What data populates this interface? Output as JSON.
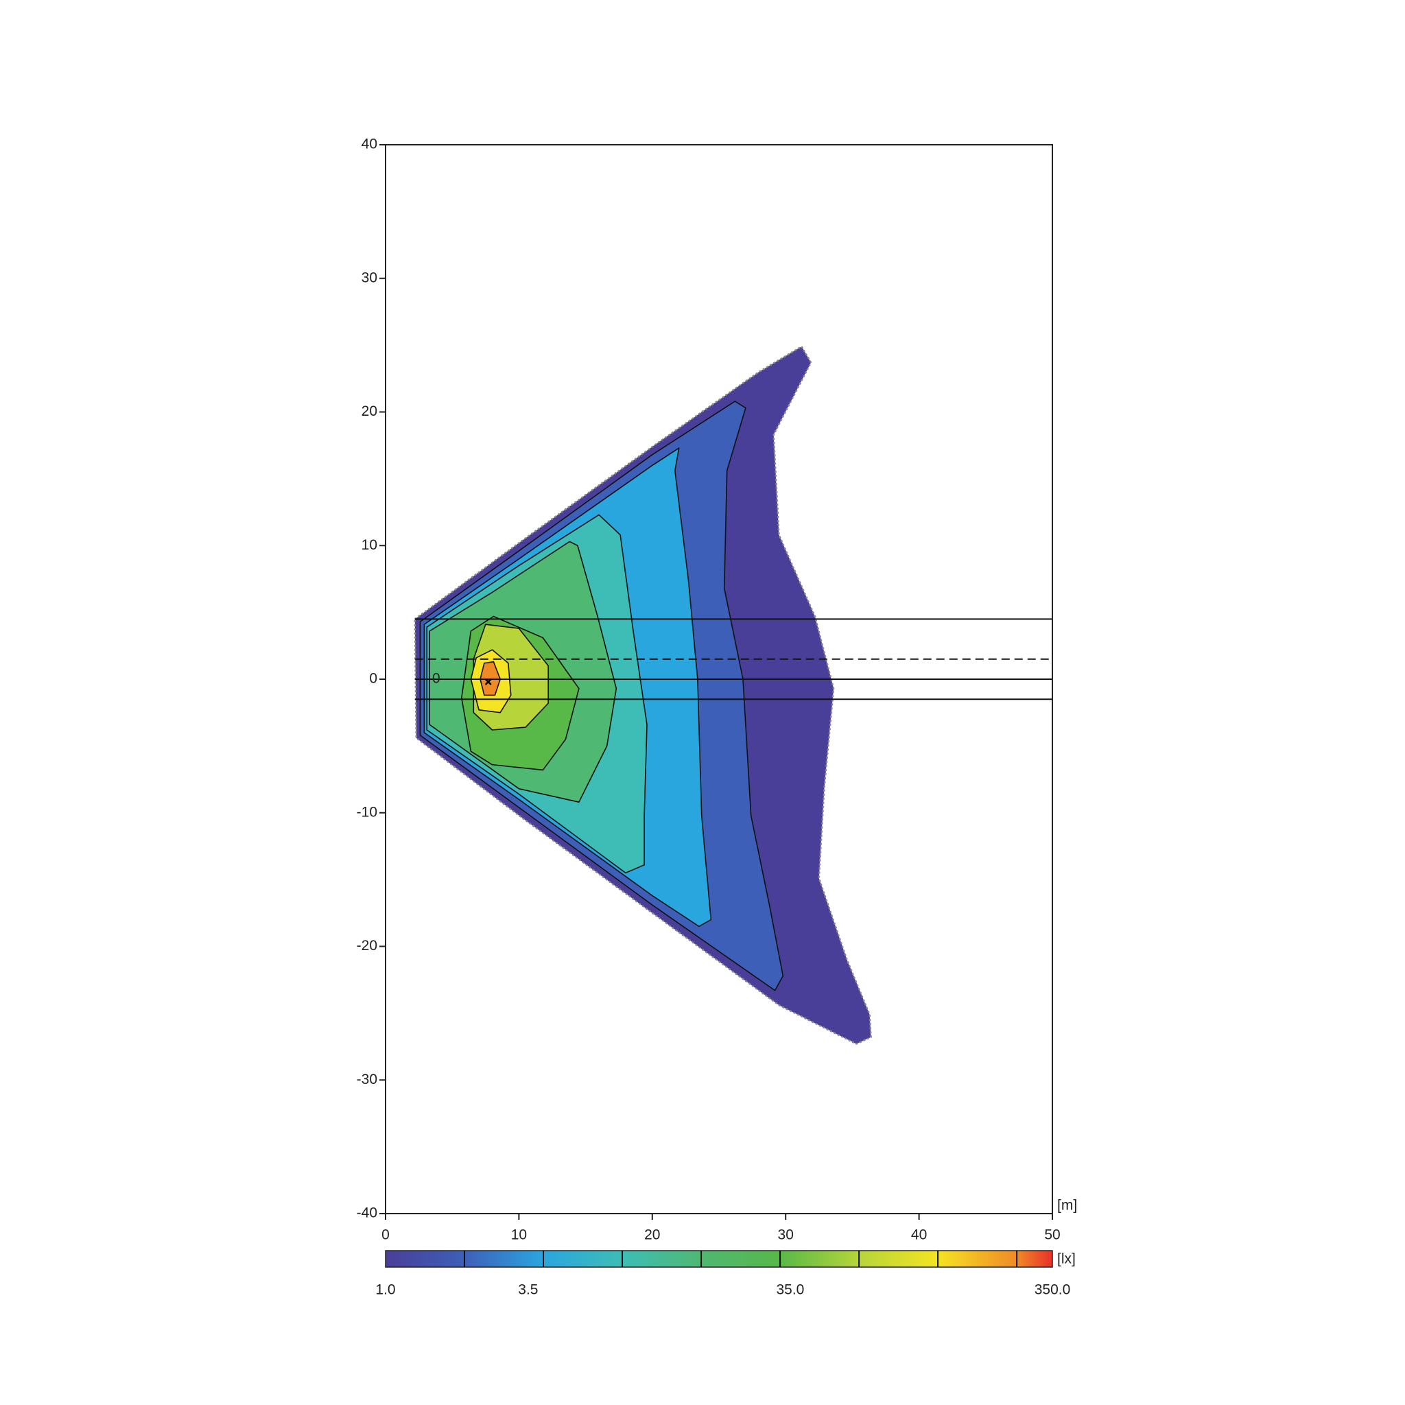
{
  "chart_data": {
    "type": "contour",
    "x_unit": "[m]",
    "color_unit": "[lx]",
    "xlim": [
      0,
      50
    ],
    "ylim": [
      -40,
      40
    ],
    "xticks": [
      0,
      10,
      20,
      30,
      40,
      50
    ],
    "yticks": [
      -40,
      -30,
      -20,
      -10,
      0,
      10,
      20,
      30,
      40
    ],
    "colorlim": [
      1,
      350
    ],
    "color_log": true,
    "colorbar_ticks": [
      {
        "value": 1,
        "label": "1.0"
      },
      3.5,
      {
        "value": 35,
        "label": "35.0"
      },
      {
        "value": 350,
        "label": "350.0"
      }
    ],
    "colorbar_marks": [
      2,
      4,
      8,
      16,
      32,
      64,
      128,
      256
    ],
    "colorscale": [
      {
        "value": 1,
        "color": "#4a3f98"
      },
      {
        "value": 2,
        "color": "#3e5fb8"
      },
      {
        "value": 4,
        "color": "#2aa6df"
      },
      {
        "value": 8,
        "color": "#3dbdb6"
      },
      {
        "value": 16,
        "color": "#4fb873"
      },
      {
        "value": 32,
        "color": "#58b848"
      },
      {
        "value": 64,
        "color": "#b7d53a"
      },
      {
        "value": 128,
        "color": "#f4e423"
      },
      {
        "value": 256,
        "color": "#f08a26"
      },
      {
        "value": 350,
        "color": "#e7302a"
      }
    ],
    "contours": [
      {
        "level": 1,
        "x": [
          2.2,
          10,
          20,
          28,
          31.2,
          31.9,
          29.1,
          29.5,
          32.2,
          33.6,
          32.9,
          32.5,
          34.6,
          36.3,
          36.4,
          35.3,
          29.5,
          20,
          10,
          2.3
        ],
        "y": [
          4.5,
          10.2,
          17.4,
          23,
          24.9,
          23.7,
          18.3,
          10.8,
          4.7,
          -0.7,
          -8.1,
          -14.9,
          -21,
          -25.1,
          -26.8,
          -27.3,
          -24.4,
          -17.5,
          -10.2,
          -4.4
        ]
      },
      {
        "level": 2,
        "x": [
          2.6,
          10,
          20,
          26.2,
          27,
          25.6,
          25.4,
          26.8,
          27.4,
          28.8,
          29.8,
          29.2,
          20,
          10,
          2.6
        ],
        "y": [
          4.3,
          9.6,
          16.8,
          20.8,
          20.3,
          15.6,
          6.8,
          0,
          -10.2,
          -17,
          -22.2,
          -23.3,
          -16.9,
          -9.6,
          -4.2
        ]
      },
      {
        "level": 4,
        "x": [
          2.9,
          10,
          20,
          22,
          21.7,
          22.7,
          23.4,
          23.7,
          24.4,
          23.5,
          20,
          10,
          2.9
        ],
        "y": [
          4.1,
          9,
          16,
          17.3,
          15.6,
          7.5,
          0,
          -10.2,
          -18,
          -18.5,
          -16.2,
          -9,
          -4
        ]
      },
      {
        "level": 8,
        "x": [
          3.1,
          10,
          16,
          17.6,
          18.6,
          19.6,
          19.4,
          19.4,
          18,
          10,
          3.1
        ],
        "y": [
          3.9,
          8.5,
          12.3,
          10.8,
          3.4,
          -3.4,
          -10.2,
          -13.9,
          -14.5,
          -8.6,
          -3.8
        ]
      },
      {
        "level": 16,
        "x": [
          3.3,
          8,
          13.8,
          14.4,
          15.9,
          17.3,
          16.6,
          14.5,
          10,
          3.3
        ],
        "y": [
          3.6,
          6.5,
          10.3,
          10,
          4.7,
          -0.7,
          -5,
          -9.2,
          -8.2,
          -3.4
        ]
      },
      {
        "level": 32,
        "x": [
          5.7,
          6.4,
          8.1,
          11.8,
          14.5,
          13.5,
          11.8,
          8,
          6.4
        ],
        "y": [
          -1.4,
          3.6,
          4.7,
          3.1,
          -0.7,
          -4.5,
          -6.8,
          -6.4,
          -5.4
        ]
      },
      {
        "level": 64,
        "x": [
          6.6,
          7.5,
          10,
          12.2,
          12.2,
          10.5,
          8,
          6.6
        ],
        "y": [
          1.5,
          4.1,
          3.8,
          1,
          -1.8,
          -3.6,
          -3.8,
          -2.5
        ]
      },
      {
        "level": 128,
        "x": [
          6.4,
          6.8,
          8,
          9.2,
          9.4,
          8.6,
          7
        ],
        "y": [
          0,
          1.6,
          2.2,
          1.2,
          -1.2,
          -2.5,
          -2.3
        ]
      },
      {
        "level": 256,
        "x": [
          7.1,
          7.4,
          8.1,
          8.6,
          8.2,
          7.4
        ],
        "y": [
          0,
          1.2,
          1.3,
          0,
          -1.2,
          -1.2
        ]
      }
    ],
    "hlines": [
      {
        "y": 4.5,
        "from": 2.2,
        "style": "solid"
      },
      {
        "y": 1.5,
        "from": 2.2,
        "style": "dashed"
      },
      {
        "y": 0,
        "from": 2.2,
        "style": "solid"
      },
      {
        "y": -1.5,
        "from": 2.2,
        "style": "solid"
      }
    ],
    "annotation": {
      "text": "0",
      "x": 3.8,
      "y": 0
    },
    "source": {
      "x": 7.7,
      "y": -0.2
    }
  }
}
